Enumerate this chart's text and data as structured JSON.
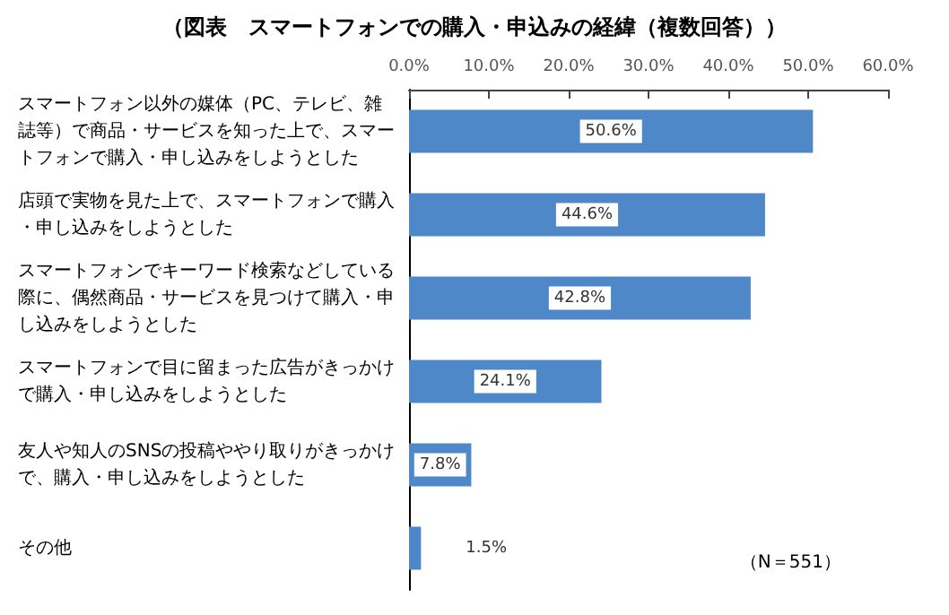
{
  "chart_data": {
    "type": "bar",
    "orientation": "horizontal",
    "title": "（図表　スマートフォンでの購入・申込みの経緯（複数回答））",
    "categories": [
      "スマートフォン以外の媒体（PC、テレビ、雑誌等）で商品・サービスを知った上で、スマートフォンで購入・申し込みをしようとした",
      "店頭で実物を見た上で、スマートフォンで購入・申し込みをしようとした",
      "スマートフォンでキーワード検索などしている際に、偶然商品・サービスを見つけて購入・申し込みをしようとした",
      "スマートフォンで目に留まった広告がきっかけで購入・申し込みをしようとした",
      "友人や知人のSNSの投稿ややり取りがきっかけで、購入・申し込みをしようとした",
      "その他"
    ],
    "values": [
      50.6,
      44.6,
      42.8,
      24.1,
      7.8,
      1.5
    ],
    "value_labels": [
      "50.6%",
      "44.6%",
      "42.8%",
      "24.1%",
      "7.8%",
      "1.5%"
    ],
    "color": "#4f88c8",
    "xlim": [
      0,
      60
    ],
    "xticks": [
      {
        "value": 0,
        "label": "0.0%"
      },
      {
        "value": 10,
        "label": "10.0%"
      },
      {
        "value": 20,
        "label": "20.0%"
      },
      {
        "value": 30,
        "label": "30.0%"
      },
      {
        "value": 40,
        "label": "40.0%"
      },
      {
        "value": 50,
        "label": "50.0%"
      },
      {
        "value": 60,
        "label": "60.0%"
      }
    ],
    "grid": false,
    "annotations": [
      "（N＝551）"
    ]
  }
}
